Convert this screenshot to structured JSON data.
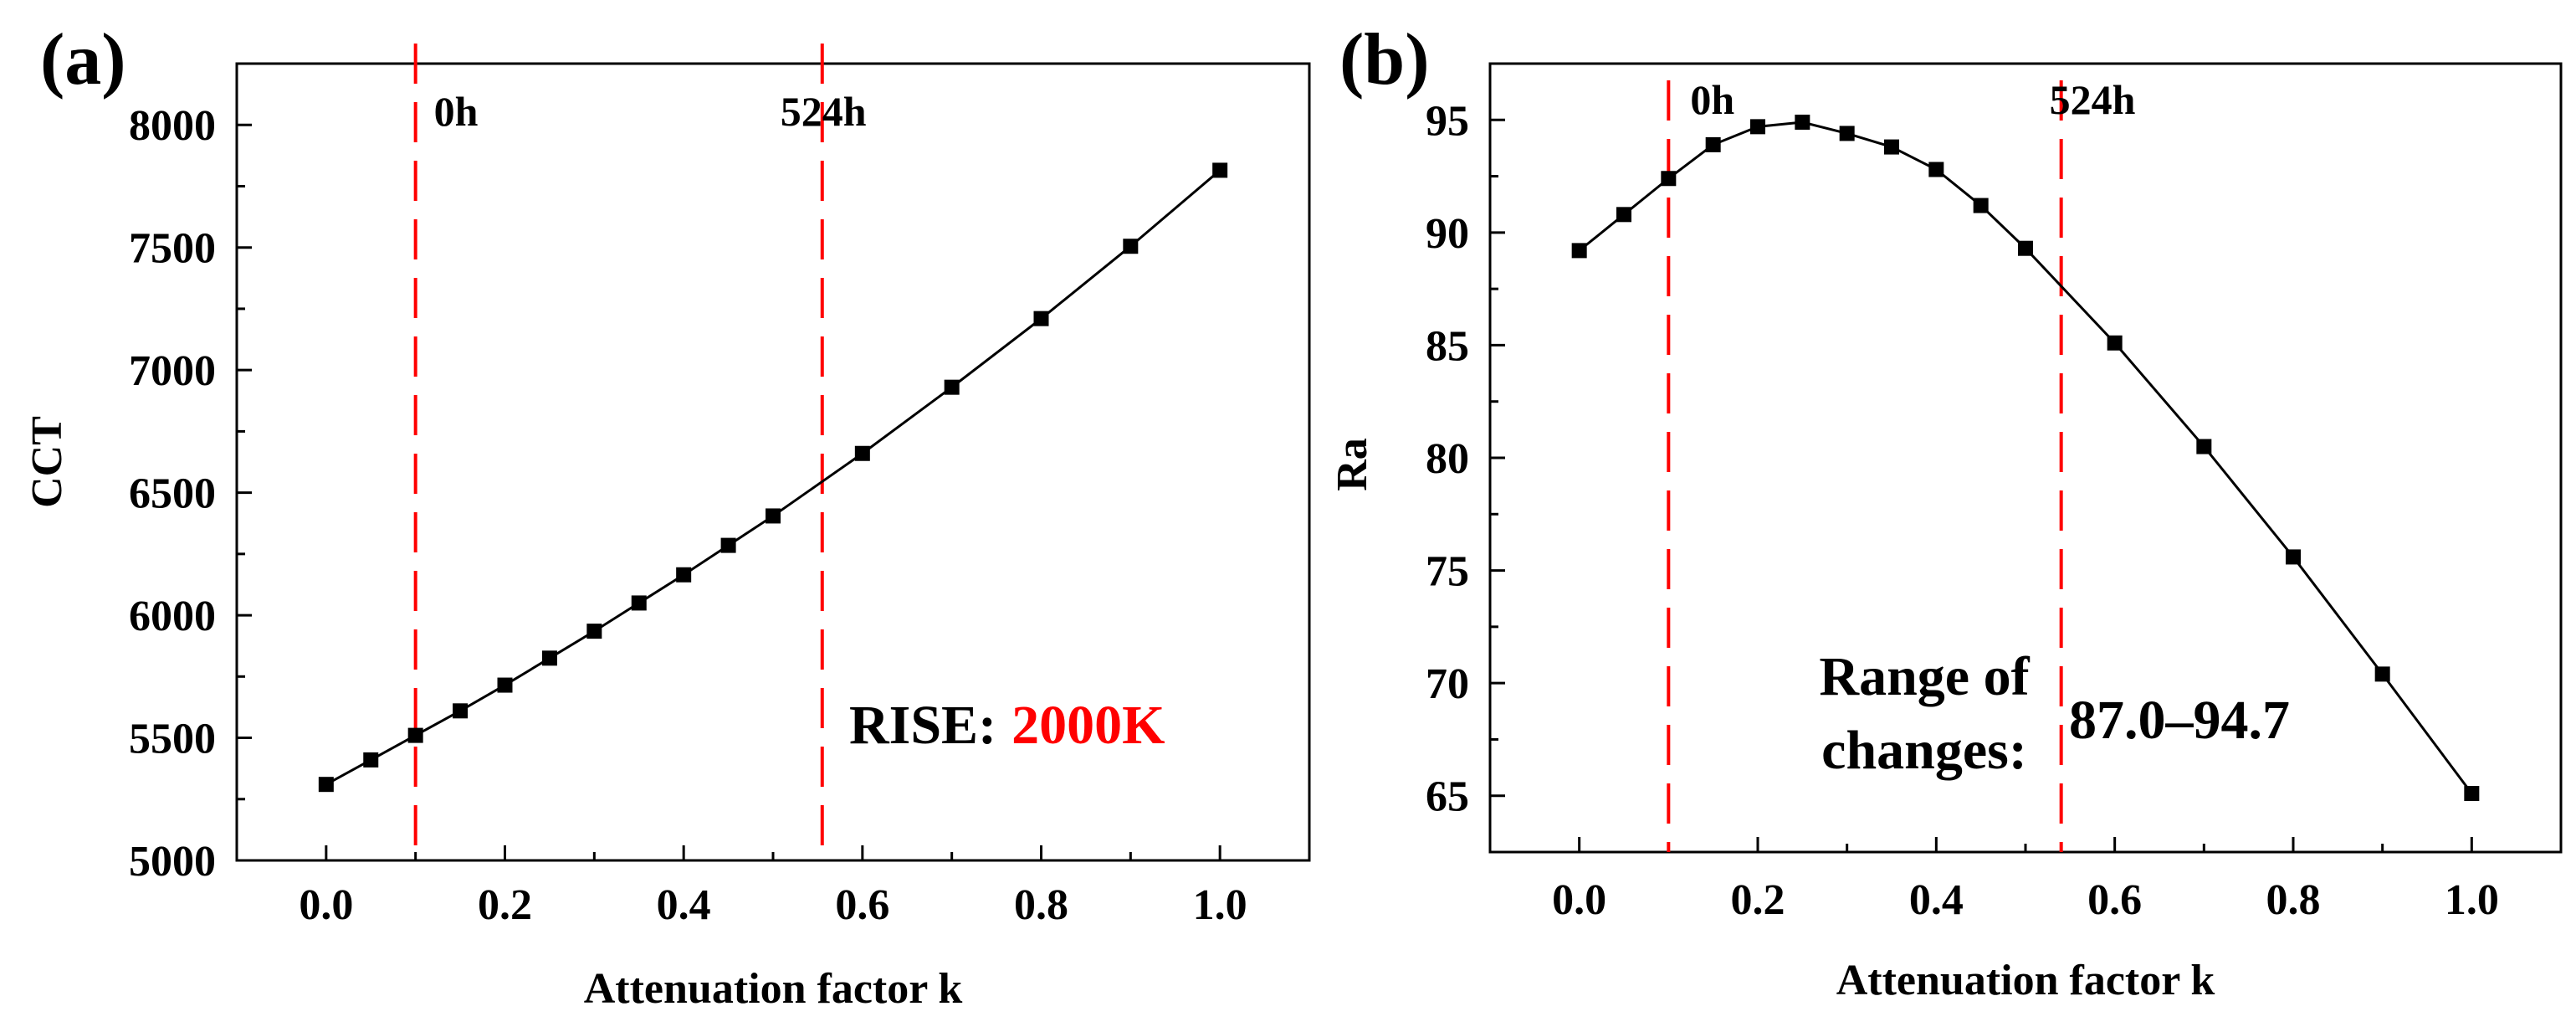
{
  "chart_data": [
    {
      "type": "line",
      "panel_label": "(a)",
      "xlabel": "Attenuation factor k",
      "ylabel": "CCT",
      "xlim": [
        -0.1,
        1.1
      ],
      "ylim": [
        5000,
        8250
      ],
      "xticks": [
        0.0,
        0.2,
        0.4,
        0.6,
        0.8,
        1.0
      ],
      "xtick_labels": [
        "0.0",
        "0.2",
        "0.4",
        "0.6",
        "0.8",
        "1.0"
      ],
      "yticks": [
        5000,
        5500,
        6000,
        6500,
        7000,
        7500,
        8000
      ],
      "ytick_labels": [
        "5000",
        "5500",
        "6000",
        "6500",
        "7000",
        "7500",
        "8000"
      ],
      "grid": false,
      "series": [
        {
          "name": "CCT",
          "color": "#000000",
          "marker": "square",
          "x": [
            0.0,
            0.05,
            0.1,
            0.15,
            0.2,
            0.25,
            0.3,
            0.35,
            0.4,
            0.45,
            0.5,
            0.6,
            0.7,
            0.8,
            0.9,
            1.0
          ],
          "values": [
            5310,
            5410,
            5510,
            5610,
            5715,
            5825,
            5935,
            6050,
            6165,
            6285,
            6405,
            6660,
            6930,
            7210,
            7505,
            7815
          ]
        }
      ],
      "vlines": [
        {
          "x": 0.1,
          "label": "0h",
          "color": "#ff0000"
        },
        {
          "x": 0.555,
          "label": "524h",
          "color": "#ff0000"
        }
      ],
      "annotation": {
        "prefix": "RISE:",
        "value": "2000K",
        "value_color": "#ff0000"
      }
    },
    {
      "type": "line",
      "panel_label": "(b)",
      "xlabel": "Attenuation factor k",
      "ylabel": "Ra",
      "xlim": [
        -0.1,
        1.1
      ],
      "ylim": [
        62.5,
        97.5
      ],
      "xticks": [
        0.0,
        0.2,
        0.4,
        0.6,
        0.8,
        1.0
      ],
      "xtick_labels": [
        "0.0",
        "0.2",
        "0.4",
        "0.6",
        "0.8",
        "1.0"
      ],
      "yticks": [
        65,
        70,
        75,
        80,
        85,
        90,
        95
      ],
      "ytick_labels": [
        "65",
        "70",
        "75",
        "80",
        "85",
        "90",
        "95"
      ],
      "grid": false,
      "series": [
        {
          "name": "Ra",
          "color": "#000000",
          "marker": "square",
          "x": [
            0.0,
            0.05,
            0.1,
            0.15,
            0.2,
            0.25,
            0.3,
            0.35,
            0.4,
            0.45,
            0.5,
            0.6,
            0.7,
            0.8,
            0.9,
            1.0
          ],
          "values": [
            89.2,
            90.8,
            92.4,
            93.9,
            94.7,
            94.9,
            94.4,
            93.8,
            92.8,
            91.2,
            89.3,
            85.1,
            80.5,
            75.6,
            70.4,
            65.1
          ]
        }
      ],
      "vlines": [
        {
          "x": 0.1,
          "label": "0h",
          "color": "#ff0000"
        },
        {
          "x": 0.54,
          "label": "524h",
          "color": "#ff0000"
        }
      ],
      "annotation": {
        "line1": "Range of",
        "line2": "changes:",
        "value": "87.0–94.7"
      }
    }
  ]
}
